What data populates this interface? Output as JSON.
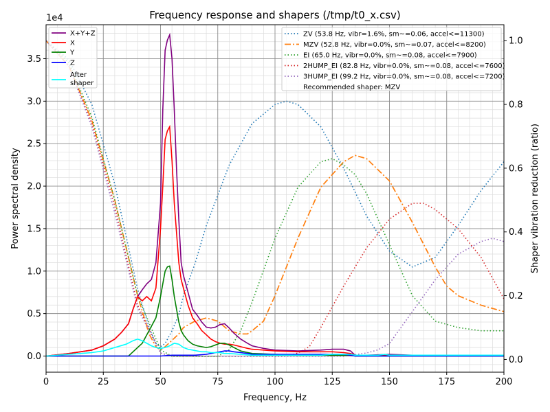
{
  "chart_data": {
    "type": "line",
    "title": "Frequency response and shapers (/tmp/t0_x.csv)",
    "xlabel": "Frequency, Hz",
    "ylabel": "Power spectral density",
    "y2label": "Shaper vibration reduction (ratio)",
    "y_scale_label": "1e4",
    "xlim": [
      0,
      200
    ],
    "ylim": [
      -0.19,
      3.9
    ],
    "y2lim": [
      -0.04,
      1.05
    ],
    "x_ticks": [
      "0",
      "25",
      "50",
      "75",
      "100",
      "125",
      "150",
      "175",
      "200"
    ],
    "y_ticks": [
      "0.0",
      "0.5",
      "1.0",
      "1.5",
      "2.0",
      "2.5",
      "3.0",
      "3.5"
    ],
    "y2_ticks": [
      "0.0",
      "0.2",
      "0.4",
      "0.6",
      "0.8",
      "1.0"
    ],
    "grid": true,
    "legend_left": {
      "placement": "top-left",
      "entries": [
        "X+Y+Z",
        "X",
        "Y",
        "Z",
        "After shaper"
      ]
    },
    "legend_right": {
      "placement": "top-right",
      "note": "Recommended shaper: MZV"
    },
    "psd_series": [
      {
        "name": "X+Y+Z",
        "color": "#800080",
        "x": [
          0,
          10,
          20,
          25,
          30,
          33,
          36,
          38,
          40,
          42,
          44,
          46,
          48,
          50,
          51,
          52,
          53,
          54,
          55,
          56,
          57,
          58,
          59,
          60,
          62,
          64,
          66,
          68,
          70,
          72,
          74,
          76,
          78,
          80,
          82,
          85,
          88,
          90,
          95,
          100,
          110,
          120,
          125,
          130,
          133,
          135,
          140,
          150,
          160,
          170,
          180,
          190,
          200
        ],
        "y": [
          0,
          0.03,
          0.07,
          0.12,
          0.2,
          0.28,
          0.38,
          0.55,
          0.7,
          0.78,
          0.85,
          0.9,
          1.1,
          1.8,
          2.9,
          3.6,
          3.72,
          3.78,
          3.5,
          2.9,
          2.2,
          1.6,
          1.1,
          0.95,
          0.75,
          0.55,
          0.48,
          0.4,
          0.34,
          0.33,
          0.34,
          0.37,
          0.38,
          0.33,
          0.27,
          0.2,
          0.15,
          0.12,
          0.09,
          0.07,
          0.06,
          0.07,
          0.08,
          0.08,
          0.06,
          0.01,
          0.01,
          0.02,
          0.01,
          0.01,
          0.01,
          0.01,
          0.01
        ]
      },
      {
        "name": "X",
        "color": "#ff0000",
        "x": [
          0,
          10,
          20,
          25,
          30,
          33,
          36,
          38,
          40,
          42,
          44,
          46,
          48,
          50,
          51,
          52,
          53,
          54,
          55,
          56,
          57,
          58,
          59,
          60,
          62,
          64,
          66,
          68,
          70,
          72,
          74,
          76,
          78,
          80,
          82,
          85,
          88,
          90,
          95,
          100,
          110,
          120,
          125,
          130,
          133,
          135,
          140,
          150,
          160,
          170,
          180,
          190,
          200
        ],
        "y": [
          0,
          0.03,
          0.07,
          0.12,
          0.2,
          0.28,
          0.38,
          0.55,
          0.7,
          0.65,
          0.7,
          0.65,
          0.8,
          1.5,
          2.0,
          2.55,
          2.65,
          2.7,
          2.3,
          1.8,
          1.45,
          1.1,
          0.9,
          0.8,
          0.6,
          0.45,
          0.38,
          0.3,
          0.25,
          0.2,
          0.17,
          0.15,
          0.14,
          0.14,
          0.13,
          0.11,
          0.09,
          0.08,
          0.07,
          0.06,
          0.05,
          0.05,
          0.05,
          0.04,
          0.03,
          0.01,
          0.01,
          0.01,
          0.01,
          0.01,
          0.01,
          0.01,
          0.01
        ]
      },
      {
        "name": "Y",
        "color": "#008000",
        "x": [
          0,
          30,
          36,
          38,
          40,
          42,
          44,
          46,
          48,
          50,
          51,
          52,
          53,
          54,
          55,
          56,
          57,
          58,
          59,
          60,
          62,
          64,
          66,
          68,
          70,
          72,
          74,
          76,
          78,
          80,
          82,
          85,
          90,
          100,
          110,
          120,
          125,
          130,
          133,
          135,
          140,
          150,
          160,
          200
        ],
        "y": [
          0,
          0,
          0,
          0.05,
          0.1,
          0.15,
          0.25,
          0.35,
          0.45,
          0.7,
          0.85,
          1.0,
          1.05,
          1.06,
          0.9,
          0.7,
          0.55,
          0.4,
          0.3,
          0.25,
          0.18,
          0.14,
          0.12,
          0.11,
          0.1,
          0.11,
          0.13,
          0.15,
          0.15,
          0.13,
          0.1,
          0.06,
          0.03,
          0.02,
          0.01,
          0.01,
          0.01,
          0.01,
          0.01,
          0,
          0,
          0,
          0,
          0
        ]
      },
      {
        "name": "Z",
        "color": "#0000ff",
        "x": [
          0,
          50,
          55,
          60,
          65,
          70,
          72,
          74,
          76,
          78,
          80,
          82,
          85,
          88,
          90,
          95,
          100,
          110,
          120,
          125,
          130,
          133,
          135,
          140,
          150,
          200
        ],
        "y": [
          0,
          0,
          0.01,
          0.01,
          0.01,
          0.02,
          0.03,
          0.04,
          0.05,
          0.06,
          0.06,
          0.05,
          0.04,
          0.03,
          0.02,
          0.02,
          0.02,
          0.02,
          0.02,
          0.02,
          0.02,
          0.01,
          0,
          0,
          0,
          0
        ]
      },
      {
        "name": "After shaper",
        "color": "#00ffff",
        "x": [
          0,
          10,
          15,
          20,
          25,
          30,
          35,
          38,
          40,
          42,
          44,
          46,
          48,
          50,
          52,
          54,
          56,
          58,
          60,
          62,
          64,
          66,
          68,
          70,
          72,
          74,
          76,
          78,
          80,
          85,
          90,
          95,
          100,
          110,
          120,
          125,
          130,
          133,
          135,
          140,
          145,
          148,
          150,
          155,
          160,
          170,
          180,
          190,
          200
        ],
        "y": [
          0,
          0.02,
          0.03,
          0.04,
          0.06,
          0.1,
          0.14,
          0.18,
          0.2,
          0.18,
          0.15,
          0.12,
          0.1,
          0.09,
          0.1,
          0.12,
          0.15,
          0.14,
          0.1,
          0.08,
          0.07,
          0.06,
          0.05,
          0.05,
          0.04,
          0.04,
          0.04,
          0.03,
          0.03,
          0.02,
          0.01,
          0.01,
          0.01,
          0.01,
          0.01,
          0.02,
          0.02,
          0.02,
          0.01,
          0.01,
          0.01,
          0.02,
          0.01,
          0.01,
          0.01,
          0.01,
          0.01,
          0.01,
          0.01
        ]
      }
    ],
    "shaper_series": [
      {
        "name": "ZV (53.8 Hz, vibr=1.6%, sm~=0.06, accel<=11300)",
        "color": "#1f77b4",
        "dash": "dotted",
        "x": [
          0,
          10,
          20,
          30,
          40,
          45,
          48,
          50,
          52,
          55,
          58,
          60,
          65,
          70,
          80,
          90,
          100,
          105,
          110,
          120,
          130,
          140,
          150,
          160,
          170,
          180,
          190,
          200
        ],
        "y": [
          1.0,
          0.94,
          0.8,
          0.55,
          0.22,
          0.1,
          0.05,
          0.04,
          0.05,
          0.09,
          0.14,
          0.2,
          0.3,
          0.42,
          0.61,
          0.74,
          0.8,
          0.81,
          0.8,
          0.73,
          0.6,
          0.45,
          0.34,
          0.29,
          0.32,
          0.42,
          0.53,
          0.62
        ]
      },
      {
        "name": "MZV (52.8 Hz, vibr=0.0%, sm~=0.07, accel<=8200)",
        "color": "#ff7f0e",
        "dash": "dashdot",
        "x": [
          0,
          10,
          20,
          30,
          35,
          40,
          45,
          48,
          50,
          52,
          55,
          58,
          60,
          65,
          70,
          75,
          80,
          85,
          88,
          90,
          95,
          100,
          110,
          120,
          130,
          135,
          140,
          150,
          160,
          170,
          175,
          180,
          190,
          200
        ],
        "y": [
          1.0,
          0.92,
          0.75,
          0.5,
          0.35,
          0.2,
          0.08,
          0.04,
          0.03,
          0.04,
          0.06,
          0.08,
          0.1,
          0.12,
          0.13,
          0.12,
          0.09,
          0.08,
          0.08,
          0.09,
          0.12,
          0.2,
          0.38,
          0.54,
          0.62,
          0.64,
          0.63,
          0.56,
          0.43,
          0.29,
          0.23,
          0.2,
          0.17,
          0.15
        ]
      },
      {
        "name": "EI (65.0 Hz, vibr=0.0%, sm~=0.08, accel<=7900)",
        "color": "#2ca02c",
        "dash": "dotted",
        "x": [
          0,
          10,
          20,
          30,
          40,
          50,
          55,
          60,
          65,
          70,
          75,
          80,
          85,
          90,
          100,
          110,
          120,
          125,
          130,
          135,
          140,
          150,
          160,
          170,
          180,
          190,
          200
        ],
        "y": [
          1.0,
          0.93,
          0.76,
          0.5,
          0.2,
          0.03,
          0.01,
          0.01,
          0.01,
          0.01,
          0.01,
          0.03,
          0.09,
          0.18,
          0.38,
          0.54,
          0.62,
          0.63,
          0.61,
          0.58,
          0.52,
          0.36,
          0.2,
          0.12,
          0.1,
          0.09,
          0.09
        ]
      },
      {
        "name": "2HUMP_EI (82.8 Hz, vibr=0.0%, sm~=0.08, accel<=7600)",
        "color": "#d62728",
        "dash": "dotted",
        "x": [
          0,
          10,
          20,
          30,
          40,
          50,
          55,
          60,
          70,
          80,
          90,
          100,
          105,
          110,
          115,
          120,
          130,
          140,
          150,
          160,
          165,
          170,
          180,
          190,
          200
        ],
        "y": [
          1.0,
          0.92,
          0.74,
          0.48,
          0.17,
          0.02,
          0.01,
          0.01,
          0.01,
          0.01,
          0.01,
          0.01,
          0.01,
          0.02,
          0.04,
          0.1,
          0.23,
          0.35,
          0.44,
          0.49,
          0.49,
          0.47,
          0.41,
          0.32,
          0.19
        ]
      },
      {
        "name": "3HUMP_EI (99.2 Hz, vibr=0.0%, sm~=0.08, accel<=7200)",
        "color": "#9467bd",
        "dash": "dotted",
        "x": [
          0,
          10,
          20,
          30,
          40,
          50,
          55,
          60,
          70,
          80,
          90,
          100,
          110,
          120,
          130,
          140,
          145,
          150,
          160,
          170,
          180,
          190,
          195,
          200
        ],
        "y": [
          1.0,
          0.92,
          0.73,
          0.46,
          0.16,
          0.02,
          0.01,
          0.01,
          0.01,
          0.01,
          0.01,
          0.01,
          0.01,
          0.01,
          0.01,
          0.02,
          0.03,
          0.05,
          0.15,
          0.25,
          0.33,
          0.37,
          0.38,
          0.37
        ]
      }
    ]
  }
}
